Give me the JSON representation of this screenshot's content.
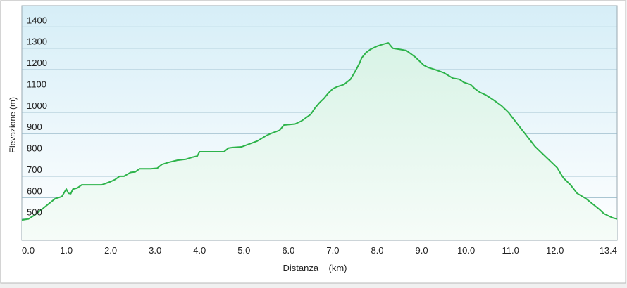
{
  "chart_data": {
    "type": "area",
    "title": "",
    "xlabel": "Distanza    (km)",
    "ylabel": "Elevazione (m)",
    "xlim": [
      0,
      13.4
    ],
    "ylim": [
      400,
      1500
    ],
    "x_ticks": [
      "0.0",
      "1.0",
      "2.0",
      "3.0",
      "4.0",
      "5.0",
      "6.0",
      "7.0",
      "8.0",
      "9.0",
      "10.0",
      "11.0",
      "12.0",
      "13.4"
    ],
    "y_ticks": [
      "500",
      "600",
      "700",
      "800",
      "900",
      "1000",
      "1100",
      "1200",
      "1300",
      "1400"
    ],
    "grid": true,
    "colors": {
      "line": "#2db34a",
      "fill_top": "#d8f3e6",
      "fill_bottom": "#f6fcf8",
      "bg_top": "#d6eef7",
      "bg_bottom": "#ffffff",
      "grid": "#8fb3c4",
      "text": "#222222"
    },
    "series": [
      {
        "x": [
          0.0,
          0.15,
          0.3,
          0.45,
          0.6,
          0.75,
          0.9,
          1.0,
          1.05,
          1.1,
          1.15,
          1.25,
          1.35,
          1.45,
          1.55,
          1.6,
          1.8,
          2.0,
          2.1,
          2.2,
          2.25,
          2.3,
          2.45,
          2.55,
          2.65,
          2.75,
          2.9,
          3.05,
          3.15,
          3.3,
          3.5,
          3.7,
          3.85,
          3.95,
          4.0,
          4.3,
          4.55,
          4.65,
          4.75,
          4.95,
          5.1,
          5.3,
          5.5,
          5.6,
          5.8,
          5.9,
          6.0,
          6.15,
          6.3,
          6.4,
          6.5,
          6.6,
          6.7,
          6.8,
          6.9,
          7.0,
          7.1,
          7.25,
          7.4,
          7.5,
          7.55,
          7.6,
          7.65,
          7.75,
          7.85,
          8.0,
          8.15,
          8.25,
          8.35,
          8.5,
          8.65,
          8.75,
          8.85,
          8.95,
          9.05,
          9.15,
          9.3,
          9.5,
          9.7,
          9.85,
          9.95,
          10.1,
          10.2,
          10.3,
          10.45,
          10.6,
          10.8,
          10.95,
          11.1,
          11.25,
          11.4,
          11.55,
          11.65,
          11.8,
          11.95,
          12.05,
          12.15,
          12.2,
          12.35,
          12.5,
          12.7,
          12.85,
          13.0,
          13.1,
          13.2,
          13.3,
          13.4
        ],
        "y": [
          495,
          500,
          520,
          545,
          570,
          595,
          605,
          640,
          620,
          618,
          640,
          645,
          660,
          660,
          660,
          660,
          660,
          675,
          685,
          700,
          700,
          700,
          718,
          720,
          735,
          735,
          735,
          738,
          755,
          765,
          775,
          780,
          790,
          795,
          815,
          815,
          815,
          832,
          835,
          838,
          850,
          865,
          890,
          900,
          915,
          940,
          942,
          945,
          960,
          975,
          990,
          1020,
          1045,
          1065,
          1090,
          1110,
          1120,
          1130,
          1155,
          1190,
          1210,
          1230,
          1255,
          1280,
          1295,
          1310,
          1320,
          1325,
          1300,
          1295,
          1290,
          1275,
          1260,
          1240,
          1220,
          1210,
          1200,
          1185,
          1160,
          1155,
          1140,
          1130,
          1110,
          1095,
          1080,
          1060,
          1030,
          1000,
          960,
          920,
          880,
          840,
          820,
          790,
          760,
          740,
          705,
          690,
          660,
          620,
          595,
          570,
          545,
          525,
          515,
          505,
          500
        ]
      }
    ]
  }
}
